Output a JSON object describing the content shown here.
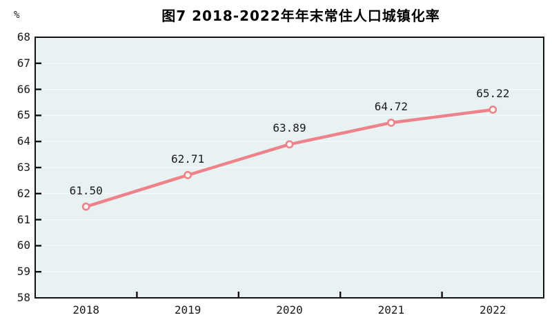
{
  "figure": {
    "title": "图7  2018-2022年年末常住人口城镇化率",
    "y_unit": "%"
  },
  "chart_data": {
    "type": "line",
    "title": "图7  2018-2022年年末常住人口城镇化率",
    "categories": [
      "2018",
      "2019",
      "2020",
      "2021",
      "2022"
    ],
    "values": [
      61.5,
      62.71,
      63.89,
      64.72,
      65.22
    ],
    "point_labels": [
      "61.50",
      "62.71",
      "63.89",
      "64.72",
      "65.22"
    ],
    "xlabel": "",
    "ylabel": "%",
    "ylim": [
      58,
      68
    ],
    "ytick_step": 1,
    "yticks": [
      58,
      59,
      60,
      61,
      62,
      63,
      64,
      65,
      66,
      67,
      68
    ],
    "grid": "horizontal-faint",
    "legend_position": "none",
    "marker": "open-circle",
    "colors": {
      "line": "#ee828a",
      "marker_fill": "#fdf6f3",
      "plot_background": "#e9f2f3",
      "gridline": "#f7fbfb",
      "axis_frame": "#111111",
      "text": "#1a1a1a",
      "page_background": "#ffffff"
    }
  }
}
